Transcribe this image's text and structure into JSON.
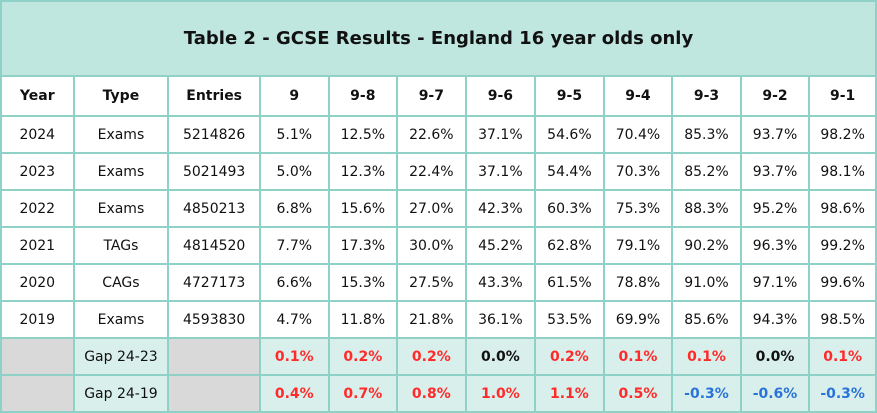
{
  "title": "Table 2 - GCSE Results - England 16 year olds only",
  "headers": [
    "Year",
    "Type",
    "Entries",
    "9",
    "9-8",
    "9-7",
    "9-6",
    "9-5",
    "9-4",
    "9-3",
    "9-2",
    "9-1"
  ],
  "rows": [
    [
      "2024",
      "Exams",
      "5214826",
      "5.1%",
      "12.5%",
      "22.6%",
      "37.1%",
      "54.6%",
      "70.4%",
      "85.3%",
      "93.7%",
      "98.2%"
    ],
    [
      "2023",
      "Exams",
      "5021493",
      "5.0%",
      "12.3%",
      "22.4%",
      "37.1%",
      "54.4%",
      "70.3%",
      "85.2%",
      "93.7%",
      "98.1%"
    ],
    [
      "2022",
      "Exams",
      "4850213",
      "6.8%",
      "15.6%",
      "27.0%",
      "42.3%",
      "60.3%",
      "75.3%",
      "88.3%",
      "95.2%",
      "98.6%"
    ],
    [
      "2021",
      "TAGs",
      "4814520",
      "7.7%",
      "17.3%",
      "30.0%",
      "45.2%",
      "62.8%",
      "79.1%",
      "90.2%",
      "96.3%",
      "99.2%"
    ],
    [
      "2020",
      "CAGs",
      "4727173",
      "6.6%",
      "15.3%",
      "27.5%",
      "43.3%",
      "61.5%",
      "78.8%",
      "91.0%",
      "97.1%",
      "99.6%"
    ],
    [
      "2019",
      "Exams",
      "4593830",
      "4.7%",
      "11.8%",
      "21.8%",
      "36.1%",
      "53.5%",
      "69.9%",
      "85.6%",
      "94.3%",
      "98.5%"
    ]
  ],
  "gaps": [
    {
      "label": "Gap 24-23",
      "values": [
        "0.1%",
        "0.2%",
        "0.2%",
        "0.0%",
        "0.2%",
        "0.1%",
        "0.1%",
        "0.0%",
        "0.1%"
      ],
      "signs": [
        "pos",
        "pos",
        "pos",
        "zero",
        "pos",
        "pos",
        "pos",
        "zero",
        "pos"
      ]
    },
    {
      "label": "Gap 24-19",
      "values": [
        "0.4%",
        "0.7%",
        "0.8%",
        "1.0%",
        "1.1%",
        "0.5%",
        "-0.3%",
        "-0.6%",
        "-0.3%"
      ],
      "signs": [
        "pos",
        "pos",
        "pos",
        "pos",
        "pos",
        "pos",
        "neg",
        "neg",
        "neg"
      ]
    }
  ],
  "colors": {
    "title_bg": "#bfe6df",
    "border": "#8fd1c6",
    "gap_bg": "#d9efeb",
    "blank_bg": "#d9d9d9",
    "positive": "#ff2a2a",
    "negative": "#2a73d9"
  }
}
